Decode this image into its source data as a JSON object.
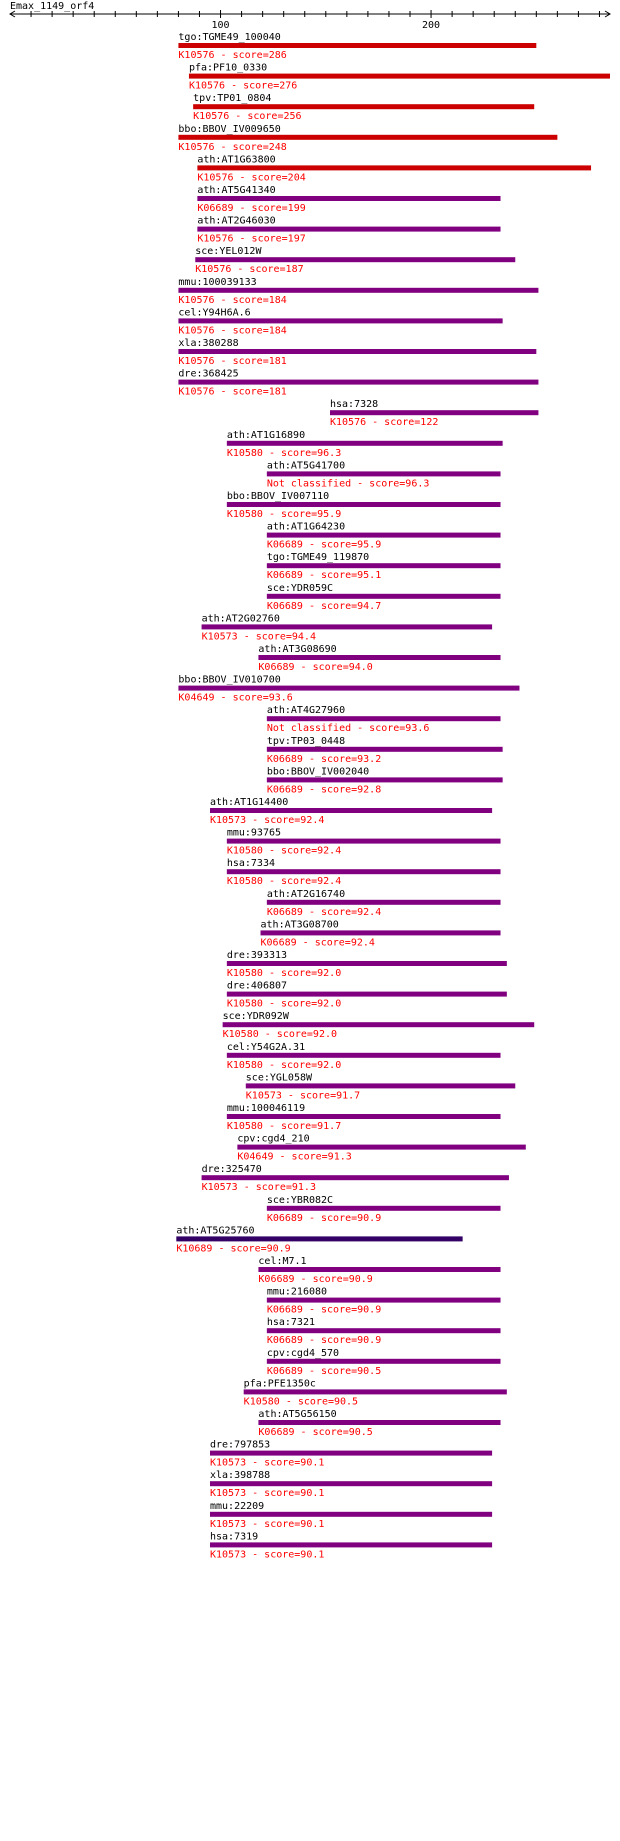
{
  "chart_data": {
    "type": "bar",
    "title": "Emax_1149_orf4",
    "x_axis": {
      "min": 0,
      "max": 285,
      "ticks": [
        100,
        200
      ],
      "tick_labels": [
        "100",
        "200"
      ]
    },
    "colors": {
      "high": "#cc0000",
      "mid": "#800080",
      "low": "#330066",
      "label": "#ff0000"
    },
    "hits": [
      {
        "id": "tgo:TGME49_100040",
        "ko": "K10576",
        "score": "286",
        "start": 80,
        "end": 250,
        "color": "high"
      },
      {
        "id": "pfa:PF10_0330",
        "ko": "K10576",
        "score": "276",
        "start": 85,
        "end": 285,
        "color": "high"
      },
      {
        "id": "tpv:TP01_0804",
        "ko": "K10576",
        "score": "256",
        "start": 87,
        "end": 249,
        "color": "high"
      },
      {
        "id": "bbo:BBOV_IV009650",
        "ko": "K10576",
        "score": "248",
        "start": 80,
        "end": 260,
        "color": "high"
      },
      {
        "id": "ath:AT1G63800",
        "ko": "K10576",
        "score": "204",
        "start": 89,
        "end": 276,
        "color": "high"
      },
      {
        "id": "ath:AT5G41340",
        "ko": "K06689",
        "score": "199",
        "start": 89,
        "end": 233,
        "color": "mid"
      },
      {
        "id": "ath:AT2G46030",
        "ko": "K10576",
        "score": "197",
        "start": 89,
        "end": 233,
        "color": "mid"
      },
      {
        "id": "sce:YEL012W",
        "ko": "K10576",
        "score": "187",
        "start": 88,
        "end": 240,
        "color": "mid"
      },
      {
        "id": "mmu:100039133",
        "ko": "K10576",
        "score": "184",
        "start": 80,
        "end": 251,
        "color": "mid"
      },
      {
        "id": "cel:Y94H6A.6",
        "ko": "K10576",
        "score": "184",
        "start": 80,
        "end": 234,
        "color": "mid"
      },
      {
        "id": "xla:380288",
        "ko": "K10576",
        "score": "181",
        "start": 80,
        "end": 250,
        "color": "mid"
      },
      {
        "id": "dre:368425",
        "ko": "K10576",
        "score": "181",
        "start": 80,
        "end": 251,
        "color": "mid"
      },
      {
        "id": "hsa:7328",
        "ko": "K10576",
        "score": "122",
        "start": 152,
        "end": 251,
        "color": "mid"
      },
      {
        "id": "ath:AT1G16890",
        "ko": "K10580",
        "score": "96.3",
        "start": 103,
        "end": 234,
        "color": "mid"
      },
      {
        "id": "ath:AT5G41700",
        "ko": "Not classified",
        "score": "96.3",
        "start": 122,
        "end": 233,
        "color": "mid"
      },
      {
        "id": "bbo:BBOV_IV007110",
        "ko": "K10580",
        "score": "95.9",
        "start": 103,
        "end": 233,
        "color": "mid"
      },
      {
        "id": "ath:AT1G64230",
        "ko": "K06689",
        "score": "95.9",
        "start": 122,
        "end": 233,
        "color": "mid"
      },
      {
        "id": "tgo:TGME49_119870",
        "ko": "K06689",
        "score": "95.1",
        "start": 122,
        "end": 233,
        "color": "mid"
      },
      {
        "id": "sce:YDR059C",
        "ko": "K06689",
        "score": "94.7",
        "start": 122,
        "end": 233,
        "color": "mid"
      },
      {
        "id": "ath:AT2G02760",
        "ko": "K10573",
        "score": "94.4",
        "start": 91,
        "end": 229,
        "color": "mid"
      },
      {
        "id": "ath:AT3G08690",
        "ko": "K06689",
        "score": "94.0",
        "start": 118,
        "end": 233,
        "color": "mid"
      },
      {
        "id": "bbo:BBOV_IV010700",
        "ko": "K04649",
        "score": "93.6",
        "start": 80,
        "end": 242,
        "color": "mid"
      },
      {
        "id": "ath:AT4G27960",
        "ko": "Not classified",
        "score": "93.6",
        "start": 122,
        "end": 233,
        "color": "mid"
      },
      {
        "id": "tpv:TP03_0448",
        "ko": "K06689",
        "score": "93.2",
        "start": 122,
        "end": 234,
        "color": "mid"
      },
      {
        "id": "bbo:BBOV_IV002040",
        "ko": "K06689",
        "score": "92.8",
        "start": 122,
        "end": 234,
        "color": "mid"
      },
      {
        "id": "ath:AT1G14400",
        "ko": "K10573",
        "score": "92.4",
        "start": 95,
        "end": 229,
        "color": "mid"
      },
      {
        "id": "mmu:93765",
        "ko": "K10580",
        "score": "92.4",
        "start": 103,
        "end": 233,
        "color": "mid"
      },
      {
        "id": "hsa:7334",
        "ko": "K10580",
        "score": "92.4",
        "start": 103,
        "end": 233,
        "color": "mid"
      },
      {
        "id": "ath:AT2G16740",
        "ko": "K06689",
        "score": "92.4",
        "start": 122,
        "end": 233,
        "color": "mid"
      },
      {
        "id": "ath:AT3G08700",
        "ko": "K06689",
        "score": "92.4",
        "start": 119,
        "end": 233,
        "color": "mid"
      },
      {
        "id": "dre:393313",
        "ko": "K10580",
        "score": "92.0",
        "start": 103,
        "end": 236,
        "color": "mid"
      },
      {
        "id": "dre:406807",
        "ko": "K10580",
        "score": "92.0",
        "start": 103,
        "end": 236,
        "color": "mid"
      },
      {
        "id": "sce:YDR092W",
        "ko": "K10580",
        "score": "92.0",
        "start": 101,
        "end": 249,
        "color": "mid"
      },
      {
        "id": "cel:Y54G2A.31",
        "ko": "K10580",
        "score": "92.0",
        "start": 103,
        "end": 233,
        "color": "mid"
      },
      {
        "id": "sce:YGL058W",
        "ko": "K10573",
        "score": "91.7",
        "start": 112,
        "end": 240,
        "color": "mid"
      },
      {
        "id": "mmu:100046119",
        "ko": "K10580",
        "score": "91.7",
        "start": 103,
        "end": 233,
        "color": "mid"
      },
      {
        "id": "cpv:cgd4_210",
        "ko": "K04649",
        "score": "91.3",
        "start": 108,
        "end": 245,
        "color": "mid"
      },
      {
        "id": "dre:325470",
        "ko": "K10573",
        "score": "91.3",
        "start": 91,
        "end": 237,
        "color": "mid"
      },
      {
        "id": "sce:YBR082C",
        "ko": "K06689",
        "score": "90.9",
        "start": 122,
        "end": 233,
        "color": "mid"
      },
      {
        "id": "ath:AT5G25760",
        "ko": "K10689",
        "score": "90.9",
        "start": 79,
        "end": 215,
        "color": "low"
      },
      {
        "id": "cel:M7.1",
        "ko": "K06689",
        "score": "90.9",
        "start": 118,
        "end": 233,
        "color": "mid"
      },
      {
        "id": "mmu:216080",
        "ko": "K06689",
        "score": "90.9",
        "start": 122,
        "end": 233,
        "color": "mid"
      },
      {
        "id": "hsa:7321",
        "ko": "K06689",
        "score": "90.9",
        "start": 122,
        "end": 233,
        "color": "mid"
      },
      {
        "id": "cpv:cgd4_570",
        "ko": "K06689",
        "score": "90.5",
        "start": 122,
        "end": 233,
        "color": "mid"
      },
      {
        "id": "pfa:PFE1350c",
        "ko": "K10580",
        "score": "90.5",
        "start": 111,
        "end": 236,
        "color": "mid"
      },
      {
        "id": "ath:AT5G56150",
        "ko": "K06689",
        "score": "90.5",
        "start": 118,
        "end": 233,
        "color": "mid"
      },
      {
        "id": "dre:797853",
        "ko": "K10573",
        "score": "90.1",
        "start": 95,
        "end": 229,
        "color": "mid"
      },
      {
        "id": "xla:398788",
        "ko": "K10573",
        "score": "90.1",
        "start": 95,
        "end": 229,
        "color": "mid"
      },
      {
        "id": "mmu:22209",
        "ko": "K10573",
        "score": "90.1",
        "start": 95,
        "end": 229,
        "color": "mid"
      },
      {
        "id": "hsa:7319",
        "ko": "K10573",
        "score": "90.1",
        "start": 95,
        "end": 229,
        "color": "mid"
      }
    ]
  }
}
